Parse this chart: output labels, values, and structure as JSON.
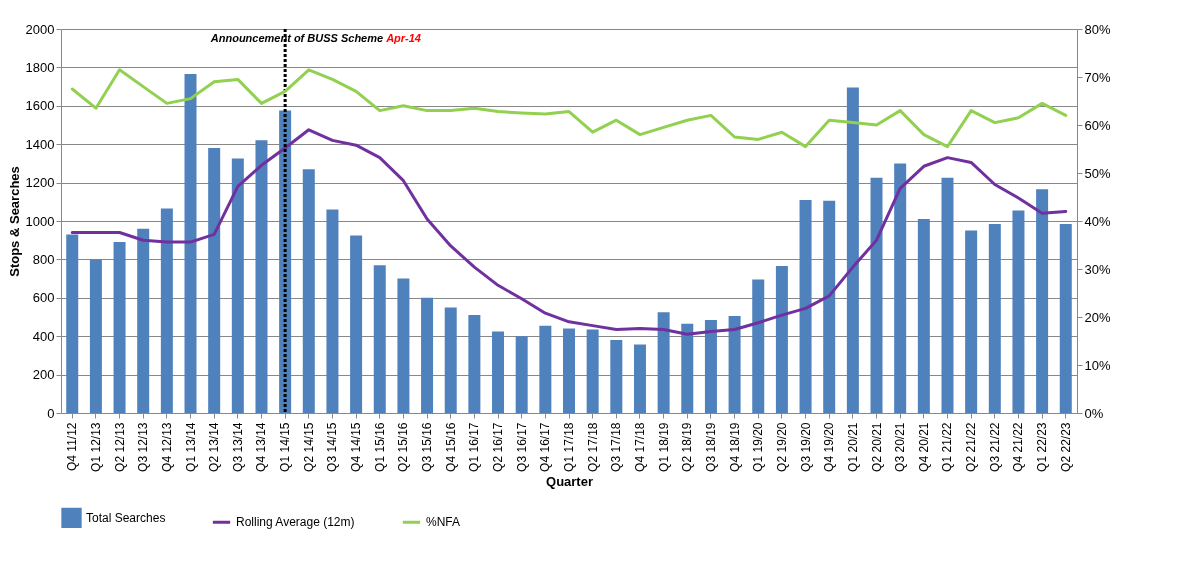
{
  "chart_data": {
    "type": "bar",
    "xlabel": "Quarter",
    "ylabel": "Stops & Searches",
    "categories": [
      "Q4 11/12",
      "Q1 12/13",
      "Q2 12/13",
      "Q3 12/13",
      "Q4 12/13",
      "Q1 13/14",
      "Q2 13/14",
      "Q3 13/14",
      "Q4 13/14",
      "Q1 14/15",
      "Q2 14/15",
      "Q3 14/15",
      "Q4 14/15",
      "Q1 15/16",
      "Q2 15/16",
      "Q3 15/16",
      "Q4 15/16",
      "Q1 16/17",
      "Q2 16/17",
      "Q3 16/17",
      "Q4 16/17",
      "Q1 17/18",
      "Q2 17/18",
      "Q3 17/18",
      "Q4 17/18",
      "Q1 18/19",
      "Q2 18/19",
      "Q3 18/19",
      "Q4 18/19",
      "Q1 19/20",
      "Q2 19/20",
      "Q3 19/20",
      "Q4 19/20",
      "Q1 20/21",
      "Q2 20/21",
      "Q3 20/21",
      "Q4 20/21",
      "Q1 21/22",
      "Q2 21/22",
      "Q3 21/22",
      "Q4 21/22",
      "Q1 22/23",
      "Q2 22/23"
    ],
    "series": [
      {
        "name": "Total Searches",
        "color": "#4f81bd",
        "values": [
          930,
          800,
          890,
          960,
          1065,
          1765,
          1380,
          1325,
          1420,
          1575,
          1270,
          1060,
          925,
          770,
          700,
          600,
          550,
          510,
          425,
          400,
          455,
          440,
          435,
          380,
          357,
          525,
          465,
          485,
          505,
          695,
          765,
          1110,
          1105,
          1695,
          1225,
          1300,
          1010,
          1225,
          950,
          985,
          1055,
          1165,
          985
        ]
      },
      {
        "name": "Rolling Average (12m)",
        "type": "line",
        "color": "#7030a0",
        "values": [
          940,
          940,
          940,
          900,
          890,
          890,
          930,
          1180,
          1290,
          1380,
          1475,
          1420,
          1395,
          1330,
          1210,
          1010,
          870,
          760,
          665,
          595,
          520,
          475,
          455,
          435,
          440,
          435,
          410,
          425,
          435,
          470,
          510,
          545,
          610,
          760,
          900,
          1170,
          1285,
          1330,
          1305,
          1190,
          1120,
          1040,
          1050
        ]
      },
      {
        "name": "%NFA",
        "type": "line",
        "color": "#92d050",
        "axis": "y2",
        "values": [
          67.5,
          63.5,
          71.5,
          68,
          64.5,
          65.5,
          69,
          69.5,
          64.5,
          67,
          71.5,
          69.5,
          67,
          63,
          64,
          63,
          63,
          63.5,
          62.8,
          62.5,
          62.3,
          62.8,
          58.5,
          61,
          58,
          59.5,
          61,
          62,
          57.5,
          57,
          58.5,
          55.5,
          61,
          60.5,
          60,
          63,
          58,
          55.5,
          63,
          60.5,
          61.5,
          64.5,
          62
        ]
      }
    ],
    "ylim": [
      0,
      2000
    ],
    "yticks": [
      0,
      200,
      400,
      600,
      800,
      1000,
      1200,
      1400,
      1600,
      1800,
      2000
    ],
    "y2lim": [
      0,
      80
    ],
    "y2ticks": [
      {
        "value": 0,
        "label": "0%"
      },
      {
        "value": 10,
        "label": "10%"
      },
      {
        "value": 20,
        "label": "20%"
      },
      {
        "value": 30,
        "label": "30%"
      },
      {
        "value": 40,
        "label": "40%"
      },
      {
        "value": 50,
        "label": "50%"
      },
      {
        "value": 60,
        "label": "60%"
      },
      {
        "value": 70,
        "label": "70%"
      },
      {
        "value": 80,
        "label": "80%"
      }
    ],
    "ref_lines": [
      {
        "axis": "x",
        "value": "Q1 14/15",
        "label": "Announcement of BUSS Scheme",
        "color": "#000000",
        "line_style": "dotted"
      }
    ],
    "annotations": [
      "Apr-14"
    ],
    "grid": "y",
    "legend": "bottom"
  }
}
